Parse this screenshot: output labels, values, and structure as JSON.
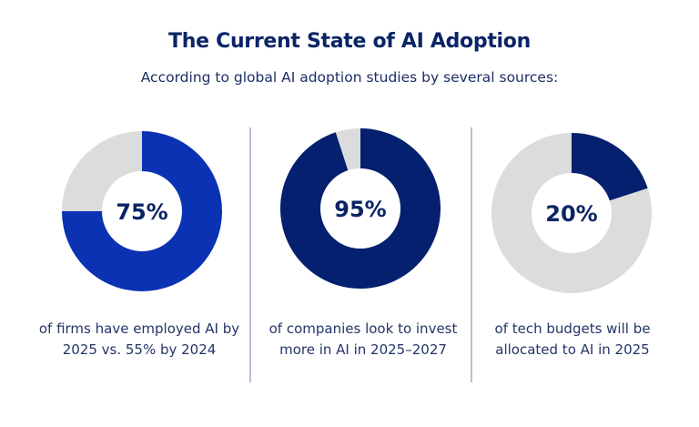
{
  "header": {
    "title": "The Current State of AI Adoption",
    "subtitle": "According to global AI adoption studies by several sources:"
  },
  "colors": {
    "remainder": "#dcdcdc",
    "title_text": "#0b2466"
  },
  "chart_data": [
    {
      "type": "pie",
      "variant": "donut",
      "label": "75%",
      "slices": [
        {
          "name": "share",
          "value": 75,
          "color": "#0a32b2"
        },
        {
          "name": "remainder",
          "value": 25,
          "color": "#dcdcdc"
        }
      ],
      "caption": "of firms have employed AI by 2025 vs. 55% by 2024"
    },
    {
      "type": "pie",
      "variant": "donut",
      "label": "95%",
      "slices": [
        {
          "name": "share",
          "value": 95,
          "color": "#04206e"
        },
        {
          "name": "remainder",
          "value": 5,
          "color": "#dcdcdc"
        }
      ],
      "caption": "of companies look to invest more in AI in 2025–2027"
    },
    {
      "type": "pie",
      "variant": "donut",
      "label": "20%",
      "slices": [
        {
          "name": "share",
          "value": 20,
          "color": "#04206e"
        },
        {
          "name": "remainder",
          "value": 80,
          "color": "#dcdcdc"
        }
      ],
      "caption": "of tech budgets will be allocated to AI in 2025"
    }
  ]
}
